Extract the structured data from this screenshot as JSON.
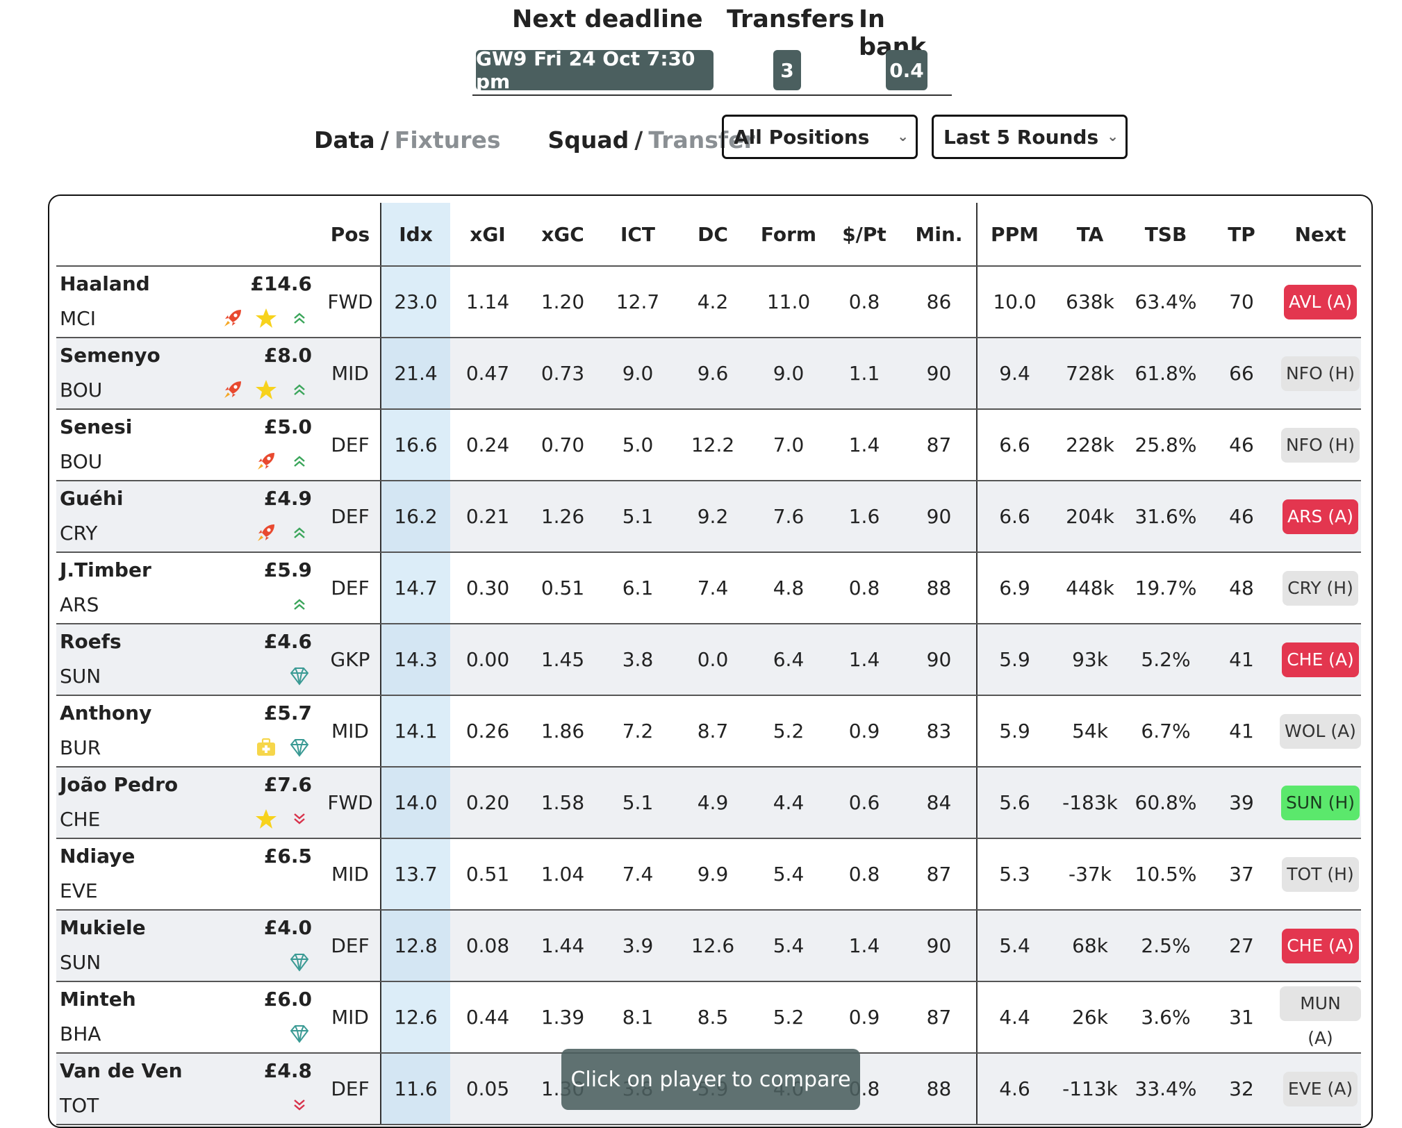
{
  "header": {
    "deadline_label": "Next deadline",
    "deadline_value": "GW9 Fri 24 Oct 7:30 pm",
    "transfers_label": "Transfers",
    "transfers_value": "3",
    "bank_label": "In bank",
    "bank_value": "0.4"
  },
  "nav": {
    "data": "Data",
    "fixtures": "Fixtures",
    "squad": "Squad",
    "transfer": "Transfer",
    "sep": "/"
  },
  "filters": {
    "positions": "All Positions",
    "rounds": "Last 5 Rounds"
  },
  "columns": [
    "",
    "Pos",
    "Idx",
    "xGI",
    "xGC",
    "ICT",
    "DC",
    "Form",
    "$/Pt",
    "Min.",
    "PPM",
    "TA",
    "TSB",
    "TP",
    "Next"
  ],
  "rows": [
    {
      "name": "Haaland",
      "price": "£14.6",
      "team": "MCI",
      "icons": [
        "rocket-icon",
        "star-icon",
        "chevrons-up-icon"
      ],
      "pos": "FWD",
      "idx": "23.0",
      "xgi": "1.14",
      "xgc": "1.20",
      "ict": "12.7",
      "dc": "4.2",
      "form": "11.0",
      "ppt": "0.8",
      "min": "86",
      "ppm": "10.0",
      "ta": "638k",
      "tsb": "63.4%",
      "tp": "70",
      "next": "AVL (A)",
      "next_color": "red"
    },
    {
      "name": "Semenyo",
      "price": "£8.0",
      "team": "BOU",
      "icons": [
        "rocket-icon",
        "star-icon",
        "chevrons-up-icon"
      ],
      "pos": "MID",
      "idx": "21.4",
      "xgi": "0.47",
      "xgc": "0.73",
      "ict": "9.0",
      "dc": "9.6",
      "form": "9.0",
      "ppt": "1.1",
      "min": "90",
      "ppm": "9.4",
      "ta": "728k",
      "tsb": "61.8%",
      "tp": "66",
      "next": "NFO (H)",
      "next_color": "grey"
    },
    {
      "name": "Senesi",
      "price": "£5.0",
      "team": "BOU",
      "icons": [
        "rocket-icon",
        "chevrons-up-icon"
      ],
      "pos": "DEF",
      "idx": "16.6",
      "xgi": "0.24",
      "xgc": "0.70",
      "ict": "5.0",
      "dc": "12.2",
      "form": "7.0",
      "ppt": "1.4",
      "min": "87",
      "ppm": "6.6",
      "ta": "228k",
      "tsb": "25.8%",
      "tp": "46",
      "next": "NFO (H)",
      "next_color": "grey"
    },
    {
      "name": "Guéhi",
      "price": "£4.9",
      "team": "CRY",
      "icons": [
        "rocket-icon",
        "chevrons-up-icon"
      ],
      "pos": "DEF",
      "idx": "16.2",
      "xgi": "0.21",
      "xgc": "1.26",
      "ict": "5.1",
      "dc": "9.2",
      "form": "7.6",
      "ppt": "1.6",
      "min": "90",
      "ppm": "6.6",
      "ta": "204k",
      "tsb": "31.6%",
      "tp": "46",
      "next": "ARS (A)",
      "next_color": "red"
    },
    {
      "name": "J.Timber",
      "price": "£5.9",
      "team": "ARS",
      "icons": [
        "chevrons-up-icon"
      ],
      "pos": "DEF",
      "idx": "14.7",
      "xgi": "0.30",
      "xgc": "0.51",
      "ict": "6.1",
      "dc": "7.4",
      "form": "4.8",
      "ppt": "0.8",
      "min": "88",
      "ppm": "6.9",
      "ta": "448k",
      "tsb": "19.7%",
      "tp": "48",
      "next": "CRY (H)",
      "next_color": "grey"
    },
    {
      "name": "Roefs",
      "price": "£4.6",
      "team": "SUN",
      "icons": [
        "diamond-icon"
      ],
      "pos": "GKP",
      "idx": "14.3",
      "xgi": "0.00",
      "xgc": "1.45",
      "ict": "3.8",
      "dc": "0.0",
      "form": "6.4",
      "ppt": "1.4",
      "min": "90",
      "ppm": "5.9",
      "ta": "93k",
      "tsb": "5.2%",
      "tp": "41",
      "next": "CHE (A)",
      "next_color": "red"
    },
    {
      "name": "Anthony",
      "price": "£5.7",
      "team": "BUR",
      "icons": [
        "medkit-icon",
        "diamond-icon"
      ],
      "pos": "MID",
      "idx": "14.1",
      "xgi": "0.26",
      "xgc": "1.86",
      "ict": "7.2",
      "dc": "8.7",
      "form": "5.2",
      "ppt": "0.9",
      "min": "83",
      "ppm": "5.9",
      "ta": "54k",
      "tsb": "6.7%",
      "tp": "41",
      "next": "WOL (A)",
      "next_color": "grey"
    },
    {
      "name": "João Pedro",
      "price": "£7.6",
      "team": "CHE",
      "icons": [
        "star-icon",
        "chevrons-down-icon"
      ],
      "pos": "FWD",
      "idx": "14.0",
      "xgi": "0.20",
      "xgc": "1.58",
      "ict": "5.1",
      "dc": "4.9",
      "form": "4.4",
      "ppt": "0.6",
      "min": "84",
      "ppm": "5.6",
      "ta": "-183k",
      "tsb": "60.8%",
      "tp": "39",
      "next": "SUN (H)",
      "next_color": "green"
    },
    {
      "name": "Ndiaye",
      "price": "£6.5",
      "team": "EVE",
      "icons": [],
      "pos": "MID",
      "idx": "13.7",
      "xgi": "0.51",
      "xgc": "1.04",
      "ict": "7.4",
      "dc": "9.9",
      "form": "5.4",
      "ppt": "0.8",
      "min": "87",
      "ppm": "5.3",
      "ta": "-37k",
      "tsb": "10.5%",
      "tp": "37",
      "next": "TOT (H)",
      "next_color": "grey"
    },
    {
      "name": "Mukiele",
      "price": "£4.0",
      "team": "SUN",
      "icons": [
        "diamond-icon"
      ],
      "pos": "DEF",
      "idx": "12.8",
      "xgi": "0.08",
      "xgc": "1.44",
      "ict": "3.9",
      "dc": "12.6",
      "form": "5.4",
      "ppt": "1.4",
      "min": "90",
      "ppm": "5.4",
      "ta": "68k",
      "tsb": "2.5%",
      "tp": "27",
      "next": "CHE (A)",
      "next_color": "red"
    },
    {
      "name": "Minteh",
      "price": "£6.0",
      "team": "BHA",
      "icons": [
        "diamond-icon"
      ],
      "pos": "MID",
      "idx": "12.6",
      "xgi": "0.44",
      "xgc": "1.39",
      "ict": "8.1",
      "dc": "8.5",
      "form": "5.2",
      "ppt": "0.9",
      "min": "87",
      "ppm": "4.4",
      "ta": "26k",
      "tsb": "3.6%",
      "tp": "31",
      "next": "MUN (A)",
      "next_color": "grey"
    },
    {
      "name": "Van de Ven",
      "price": "£4.8",
      "team": "TOT",
      "icons": [
        "chevrons-down-icon"
      ],
      "pos": "DEF",
      "idx": "11.6",
      "xgi": "0.05",
      "xgc": "1.30",
      "ict": "3.8",
      "dc": "5.9",
      "form": "4.0",
      "ppt": "0.8",
      "min": "88",
      "ppm": "4.6",
      "ta": "-113k",
      "tsb": "33.4%",
      "tp": "32",
      "next": "EVE (A)",
      "next_color": "grey"
    }
  ],
  "toast": "Click on player to compare",
  "colors": {
    "pill": "#4b5f5f",
    "badge_red": "#e3364f",
    "badge_green": "#5be86c",
    "idx_col": "#dcedf8"
  }
}
